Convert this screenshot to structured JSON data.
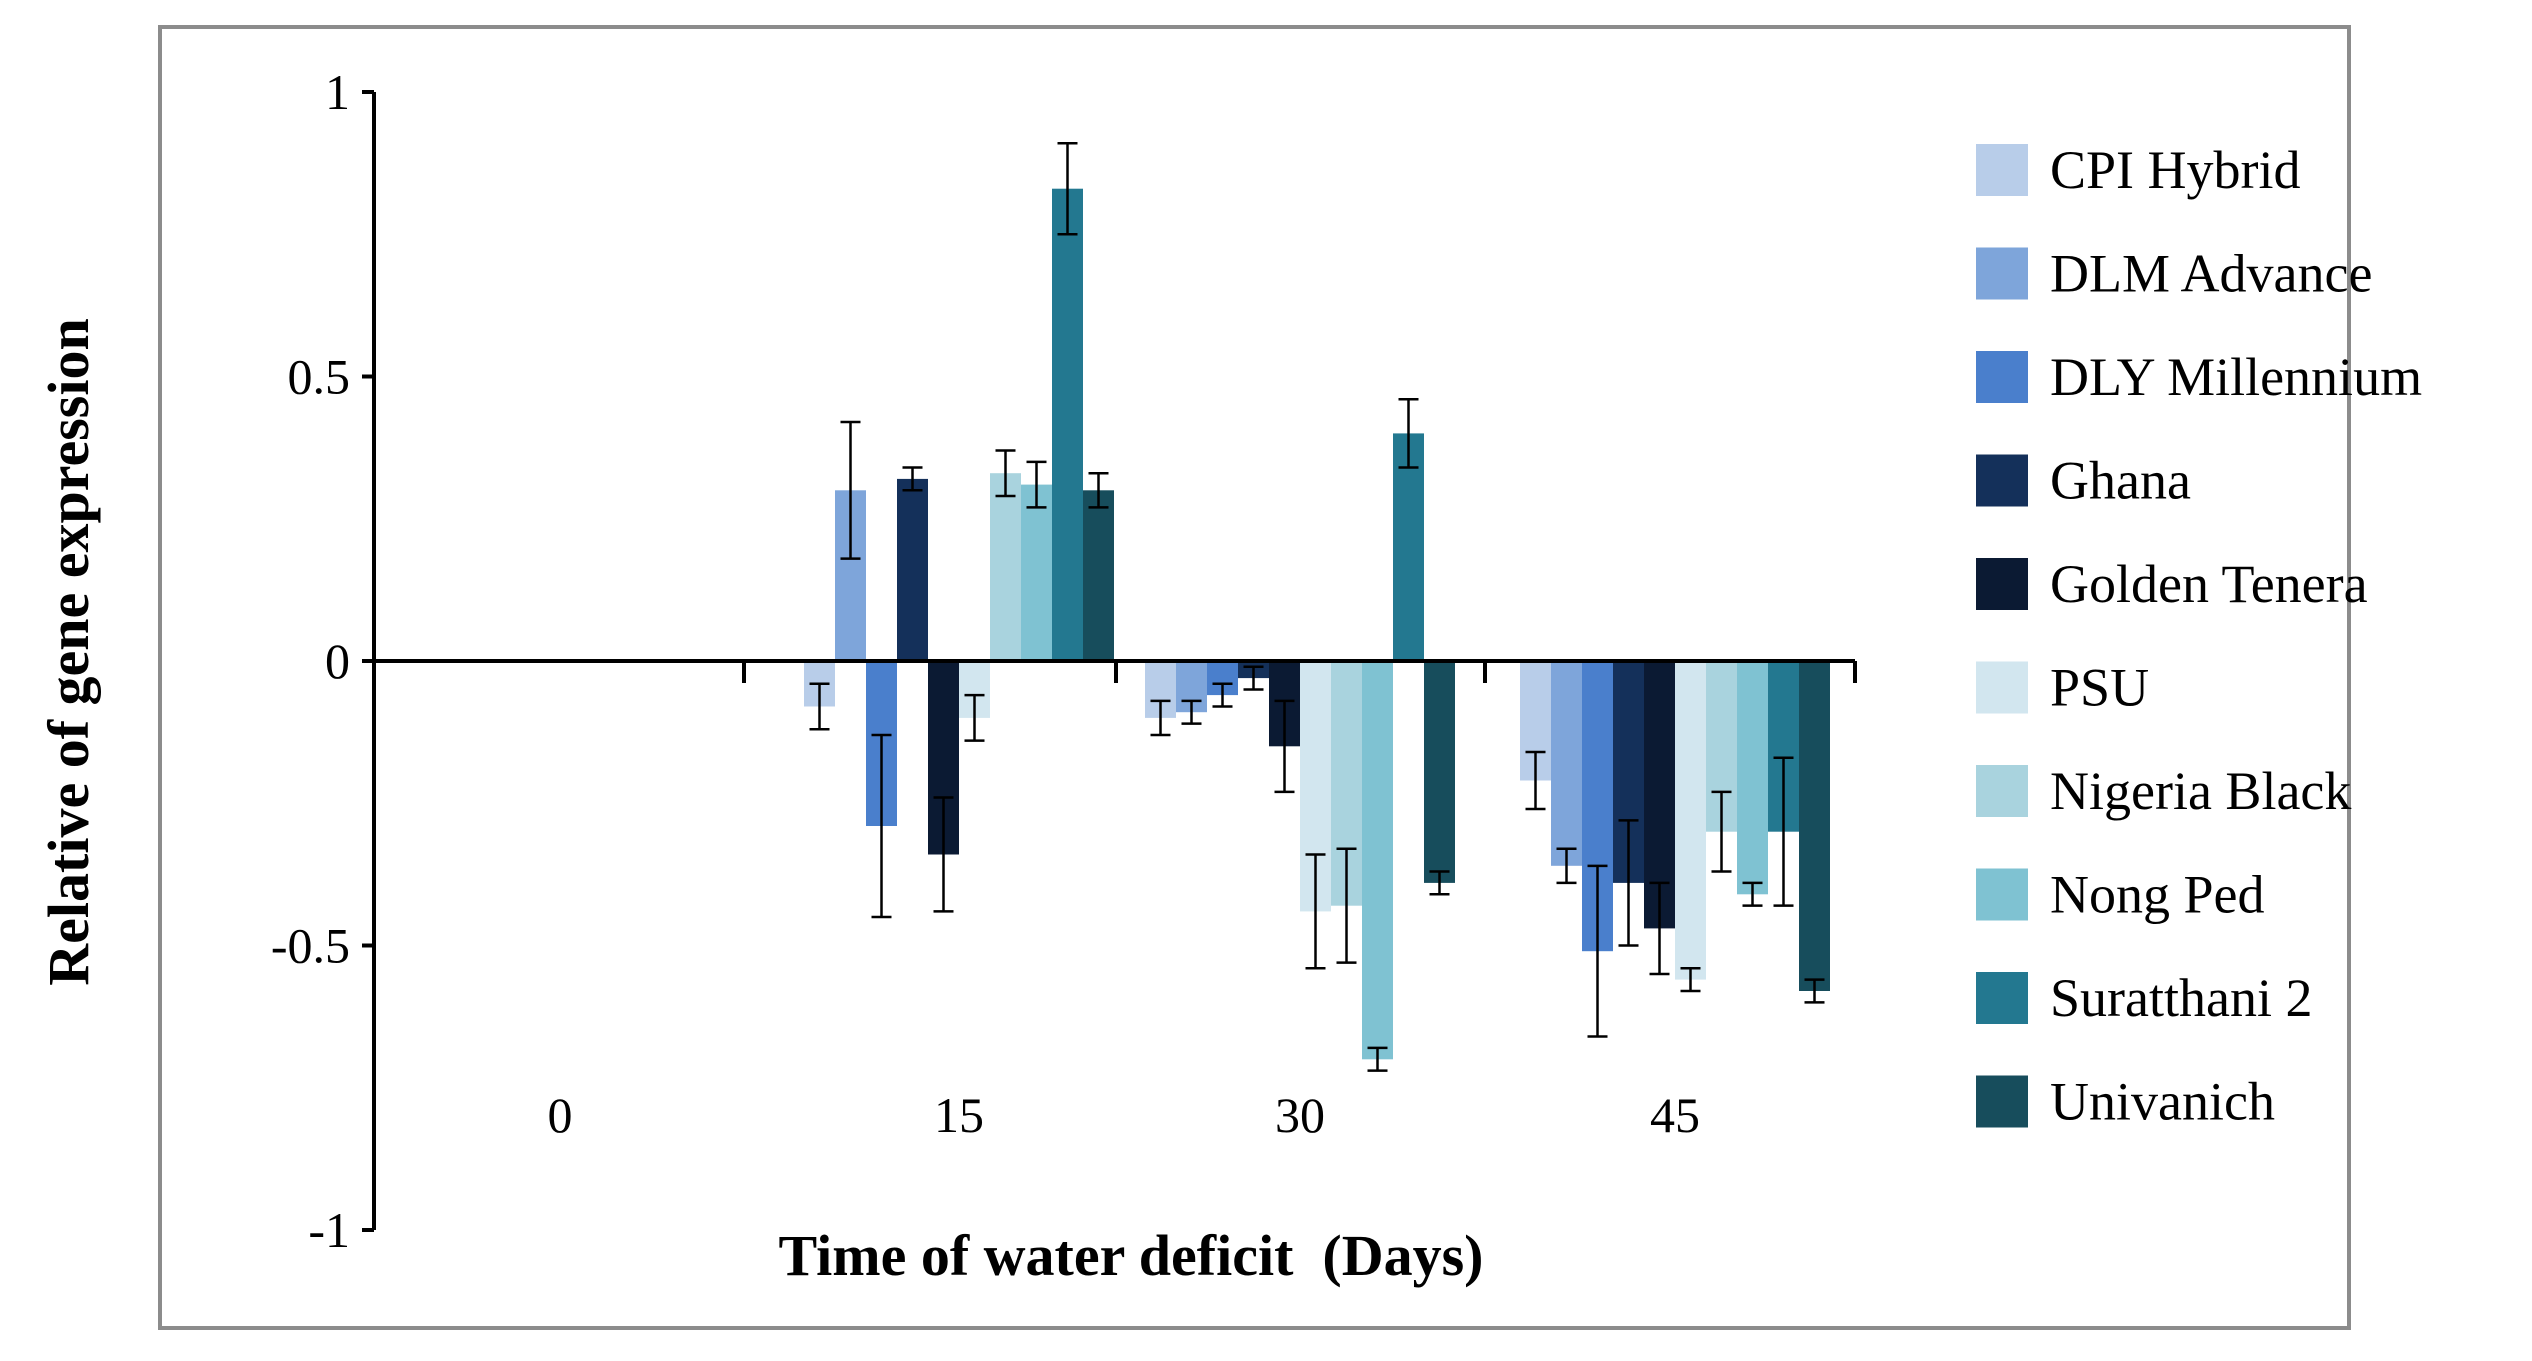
{
  "chart_data": {
    "type": "bar",
    "title": "",
    "xlabel": "Time of water deficit  (Days)",
    "ylabel": "Relative of gene expression",
    "ylim": [
      -1,
      1
    ],
    "yticks": [
      1,
      0.5,
      0,
      -0.5,
      -1
    ],
    "ytick_labels": [
      "1",
      "0.5",
      "0",
      "-0.5",
      "-1"
    ],
    "categories": [
      "0",
      "15",
      "30",
      "45"
    ],
    "legend_position": "right",
    "series": [
      {
        "name": "CPI Hybrid",
        "color": "#b8cde9",
        "values": [
          0,
          -0.08,
          -0.1,
          -0.21
        ],
        "errors": [
          0,
          0.04,
          0.03,
          0.05
        ]
      },
      {
        "name": "DLM Advance",
        "color": "#7ea5da",
        "values": [
          0,
          0.3,
          -0.09,
          -0.36
        ],
        "errors": [
          0,
          0.12,
          0.02,
          0.03
        ]
      },
      {
        "name": "DLY Millennium",
        "color": "#4a7fcc",
        "values": [
          0,
          -0.29,
          -0.06,
          -0.51
        ],
        "errors": [
          0,
          0.16,
          0.02,
          0.15
        ]
      },
      {
        "name": "Ghana",
        "color": "#14305a",
        "values": [
          0,
          0.32,
          -0.03,
          -0.39
        ],
        "errors": [
          0,
          0.02,
          0.02,
          0.11
        ]
      },
      {
        "name": "Golden Tenera",
        "color": "#0b1a33",
        "values": [
          0,
          -0.34,
          -0.15,
          -0.47
        ],
        "errors": [
          0,
          0.1,
          0.08,
          0.08
        ]
      },
      {
        "name": "PSU",
        "color": "#d2e6ef",
        "values": [
          0,
          -0.1,
          -0.44,
          -0.56
        ],
        "errors": [
          0,
          0.04,
          0.1,
          0.02
        ]
      },
      {
        "name": "Nigeria Black",
        "color": "#a9d3de",
        "values": [
          0,
          0.33,
          -0.43,
          -0.3
        ],
        "errors": [
          0,
          0.04,
          0.1,
          0.07
        ]
      },
      {
        "name": "Nong Ped",
        "color": "#7fc2d2",
        "values": [
          0,
          0.31,
          -0.7,
          -0.41
        ],
        "errors": [
          0,
          0.04,
          0.02,
          0.02
        ]
      },
      {
        "name": "Suratthani 2",
        "color": "#237890",
        "values": [
          0,
          0.83,
          0.4,
          -0.3
        ],
        "errors": [
          0,
          0.08,
          0.06,
          0.13
        ]
      },
      {
        "name": "Univanich",
        "color": "#174d5c",
        "values": [
          0,
          0.3,
          -0.39,
          -0.58
        ],
        "errors": [
          0,
          0.03,
          0.02,
          0.02
        ]
      }
    ]
  }
}
